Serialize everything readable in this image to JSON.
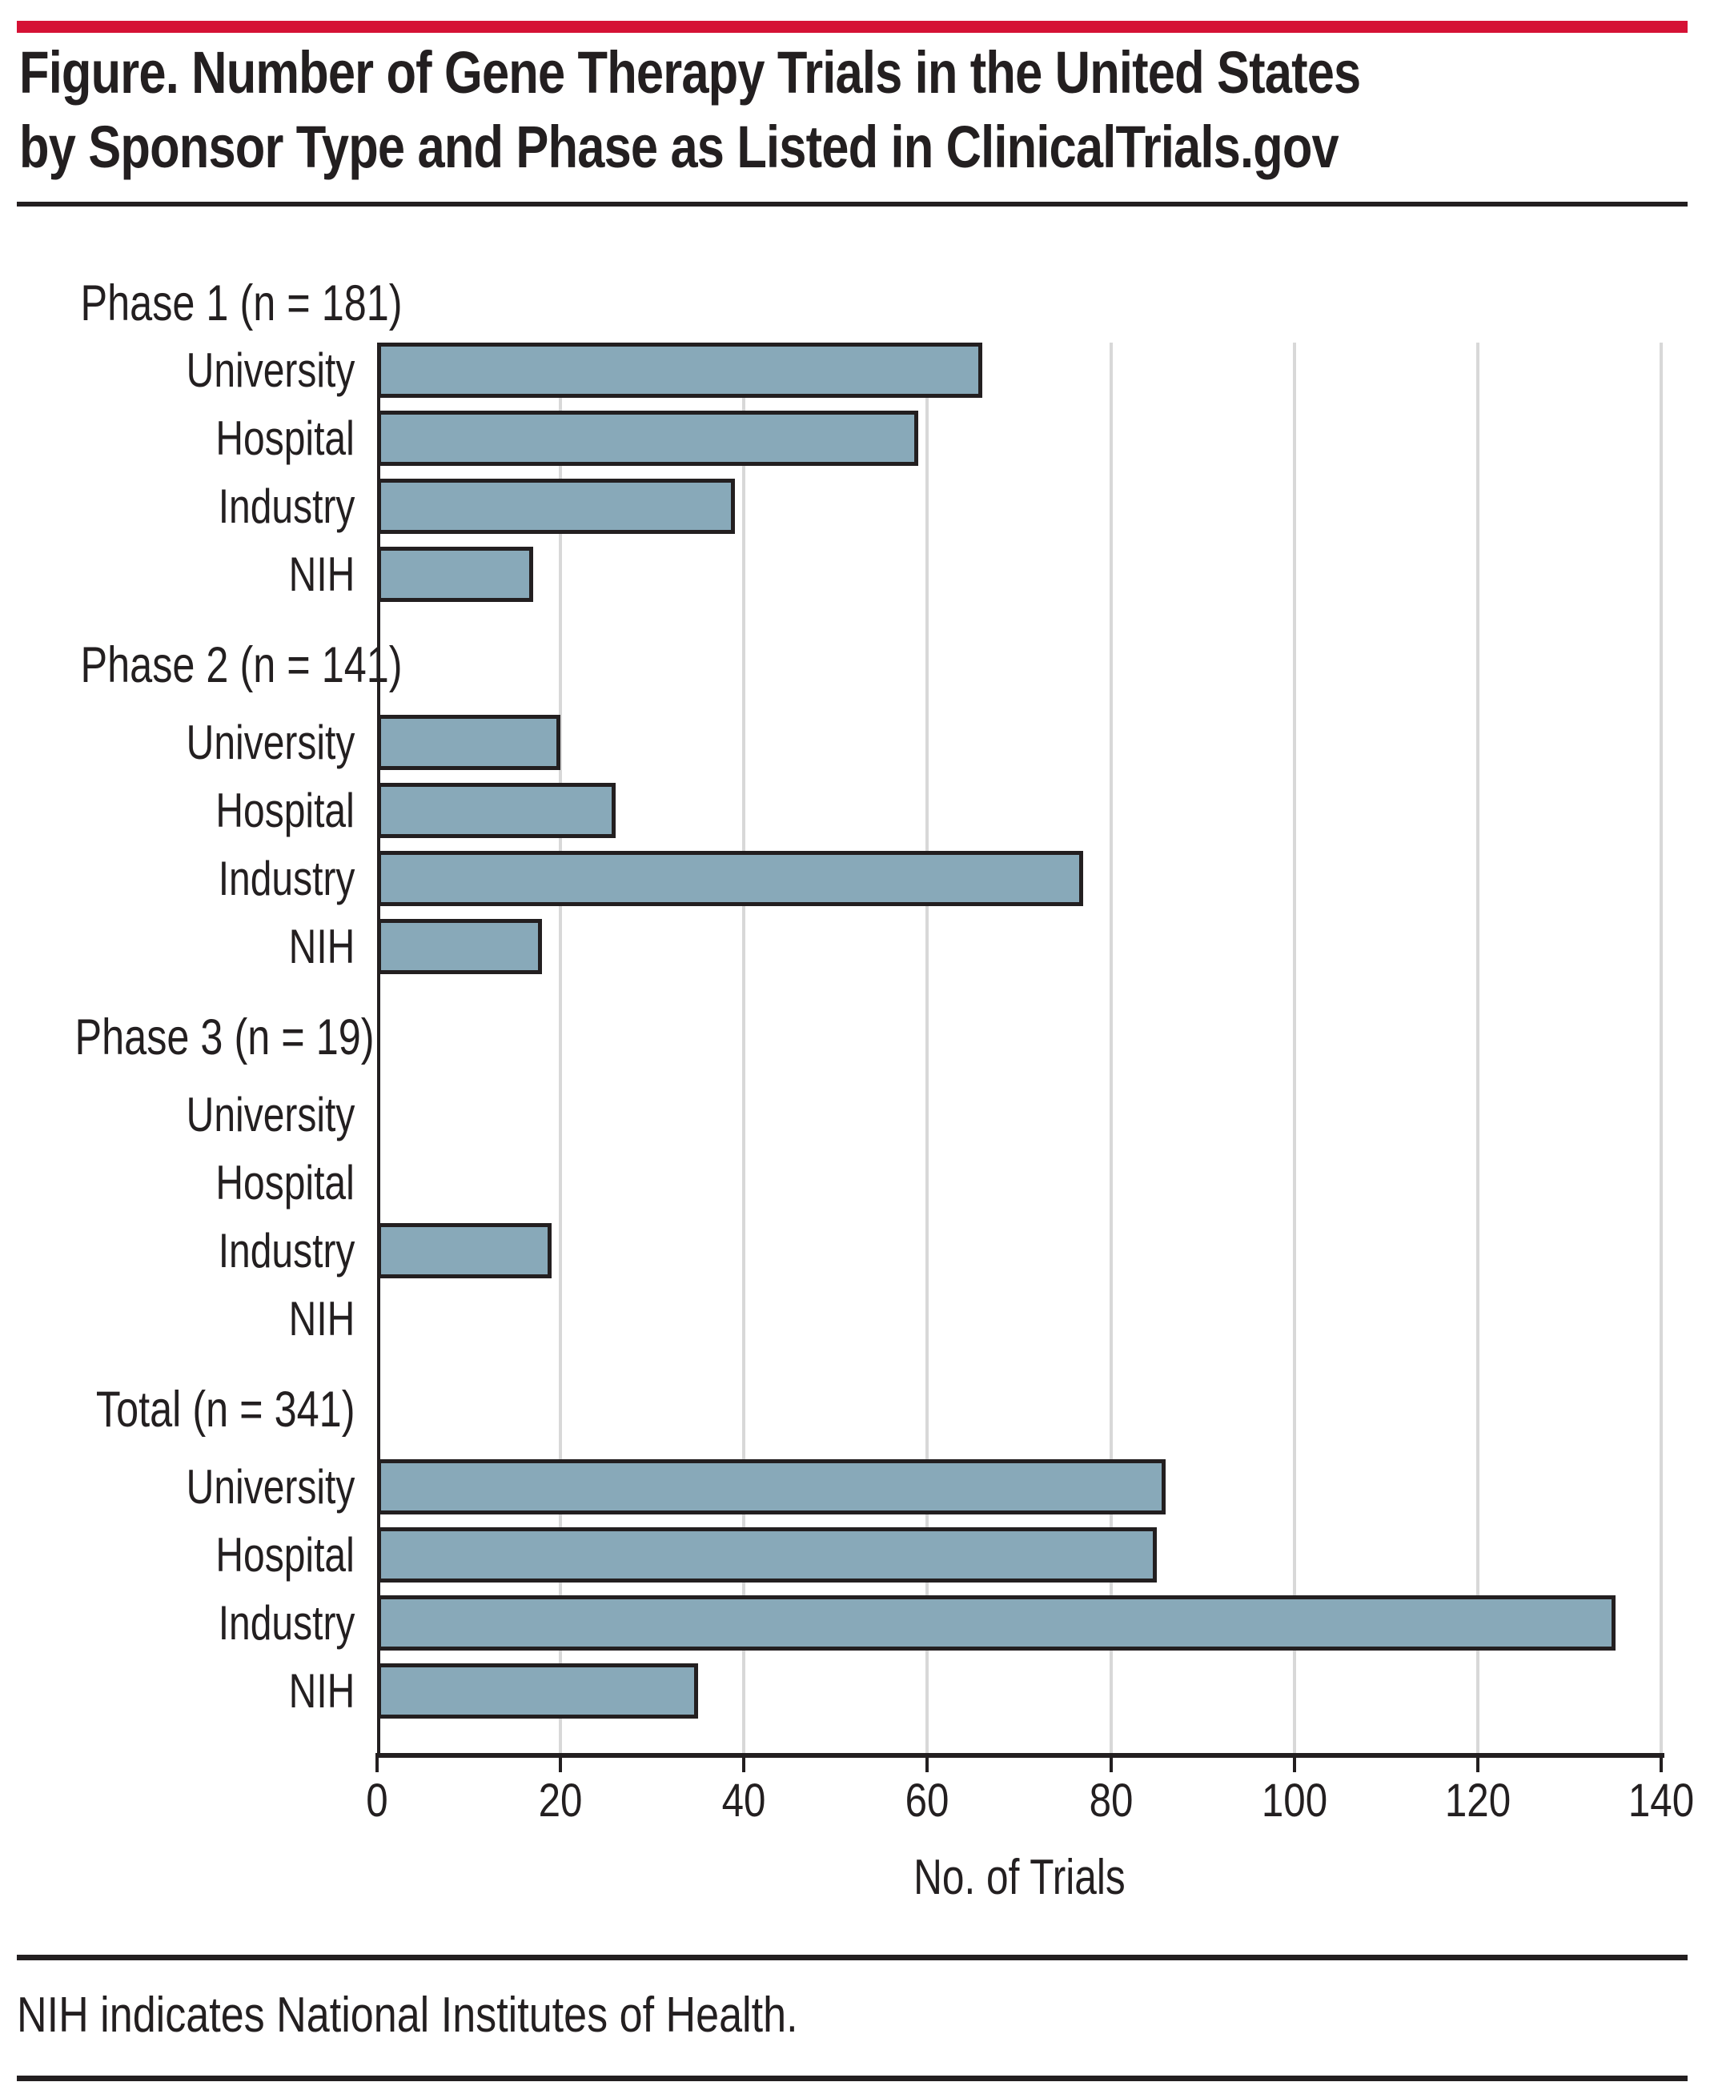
{
  "page": {
    "accent_color": "#D51235",
    "title_line1": "Figure. Number of Gene Therapy Trials in the United States",
    "title_line2": "by Sponsor Type and Phase as Listed in ClinicalTrials.gov",
    "footnote": "NIH indicates National Institutes of Health."
  },
  "chart_data": {
    "type": "bar",
    "orientation": "horizontal",
    "title": "Number of Gene Therapy Trials in the United States by Sponsor Type and Phase as Listed in ClinicalTrials.gov",
    "xlabel": "No. of Trials",
    "xlim": [
      0,
      140
    ],
    "xticks": [
      0,
      20,
      40,
      60,
      80,
      100,
      120,
      140
    ],
    "grid": "vertical-gridlines",
    "legend": "none",
    "bar_fill": "#88A9B9",
    "bar_border": "#231F20",
    "gridline_color": "#D8D8D8",
    "categories": [
      "University",
      "Hospital",
      "Industry",
      "NIH"
    ],
    "groups": [
      {
        "label": "Phase 1 (n = 181)",
        "n": 181,
        "values": [
          66,
          59,
          39,
          17
        ]
      },
      {
        "label": "Phase 2 (n = 141)",
        "n": 141,
        "values": [
          20,
          26,
          77,
          18
        ]
      },
      {
        "label": "Phase 3 (n = 19)",
        "n": 19,
        "values": [
          0,
          0,
          19,
          0
        ]
      },
      {
        "label": "Total (n = 341)",
        "n": 341,
        "values": [
          86,
          85,
          135,
          35
        ]
      }
    ]
  }
}
